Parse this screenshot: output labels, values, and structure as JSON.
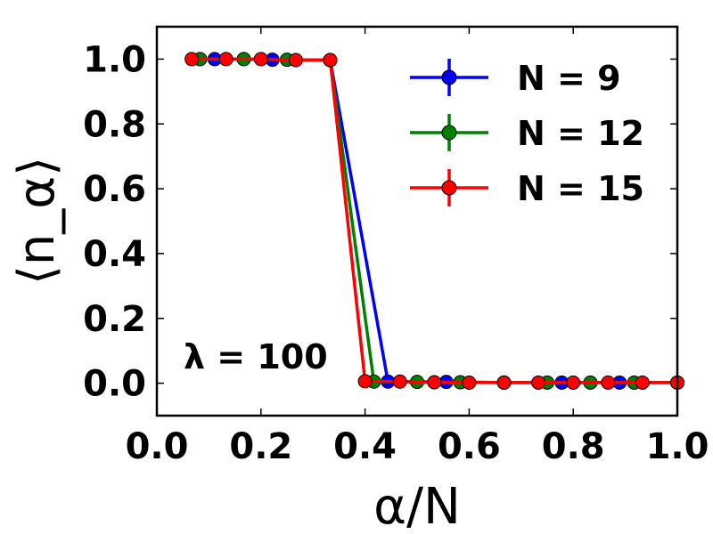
{
  "chart_data": {
    "type": "line",
    "xlabel": "α/N",
    "ylabel": "⟨n_α⟩",
    "xlim": [
      0.0,
      1.0
    ],
    "ylim": [
      -0.1,
      1.1
    ],
    "x_ticks": [
      "0.0",
      "0.2",
      "0.4",
      "0.6",
      "0.8",
      "1.0"
    ],
    "y_ticks": [
      "0.0",
      "0.2",
      "0.4",
      "0.6",
      "0.8",
      "1.0"
    ],
    "legend_position": "top-right",
    "annotation": "λ = 100",
    "series": [
      {
        "name": "N = 9",
        "color": "#0000ff",
        "x": [
          0.111,
          0.222,
          0.333,
          0.444,
          0.556,
          0.667,
          0.778,
          0.889,
          1.0
        ],
        "y": [
          1.0,
          0.998,
          0.997,
          0.005,
          0.004,
          0.002,
          0.002,
          0.002,
          0.002
        ]
      },
      {
        "name": "N = 12",
        "color": "#008000",
        "x": [
          0.083,
          0.167,
          0.25,
          0.333,
          0.417,
          0.5,
          0.583,
          0.667,
          0.75,
          0.833,
          0.917,
          1.0
        ],
        "y": [
          1.0,
          1.0,
          0.998,
          0.997,
          0.005,
          0.004,
          0.003,
          0.002,
          0.002,
          0.002,
          0.002,
          0.002
        ]
      },
      {
        "name": "N = 15",
        "color": "#ff0000",
        "x": [
          0.067,
          0.133,
          0.2,
          0.267,
          0.333,
          0.4,
          0.467,
          0.533,
          0.6,
          0.667,
          0.733,
          0.8,
          0.867,
          0.933,
          1.0
        ],
        "y": [
          1.0,
          1.0,
          1.0,
          0.997,
          0.997,
          0.006,
          0.005,
          0.003,
          0.002,
          0.002,
          0.002,
          0.002,
          0.002,
          0.002,
          0.002
        ]
      }
    ]
  }
}
